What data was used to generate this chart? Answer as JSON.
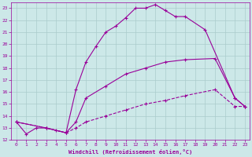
{
  "xlabel": "Windchill (Refroidissement éolien,°C)",
  "bg_color": "#cce8e8",
  "grid_color": "#aacccc",
  "line_color": "#990099",
  "xlim": [
    -0.5,
    23.5
  ],
  "ylim": [
    12,
    23.5
  ],
  "yticks": [
    12,
    13,
    14,
    15,
    16,
    17,
    18,
    19,
    20,
    21,
    22,
    23
  ],
  "xticks": [
    0,
    1,
    2,
    3,
    4,
    5,
    6,
    7,
    8,
    9,
    10,
    11,
    12,
    13,
    14,
    15,
    16,
    17,
    18,
    19,
    20,
    21,
    22,
    23
  ],
  "line1_x": [
    0,
    1,
    2,
    3,
    4,
    5,
    6,
    7,
    8,
    9,
    10,
    11,
    12,
    13,
    14,
    15,
    16,
    17,
    19,
    22,
    23
  ],
  "line1_y": [
    13.5,
    12.5,
    13.0,
    13.0,
    12.8,
    12.6,
    16.2,
    18.5,
    19.8,
    21.0,
    21.5,
    22.2,
    23.0,
    23.0,
    23.3,
    22.8,
    22.3,
    22.3,
    21.2,
    15.5,
    14.8
  ],
  "line2_x": [
    0,
    3,
    5,
    6,
    7,
    9,
    11,
    13,
    15,
    17,
    20,
    22,
    23
  ],
  "line2_y": [
    13.5,
    13.0,
    12.6,
    13.5,
    15.5,
    16.5,
    17.5,
    18.0,
    18.5,
    18.7,
    18.8,
    15.5,
    14.8
  ],
  "line3_x": [
    0,
    3,
    5,
    6,
    7,
    9,
    11,
    13,
    15,
    17,
    20,
    22,
    23
  ],
  "line3_y": [
    13.5,
    13.0,
    12.6,
    13.0,
    13.5,
    14.0,
    14.5,
    15.0,
    15.3,
    15.7,
    16.2,
    14.8,
    14.8
  ]
}
